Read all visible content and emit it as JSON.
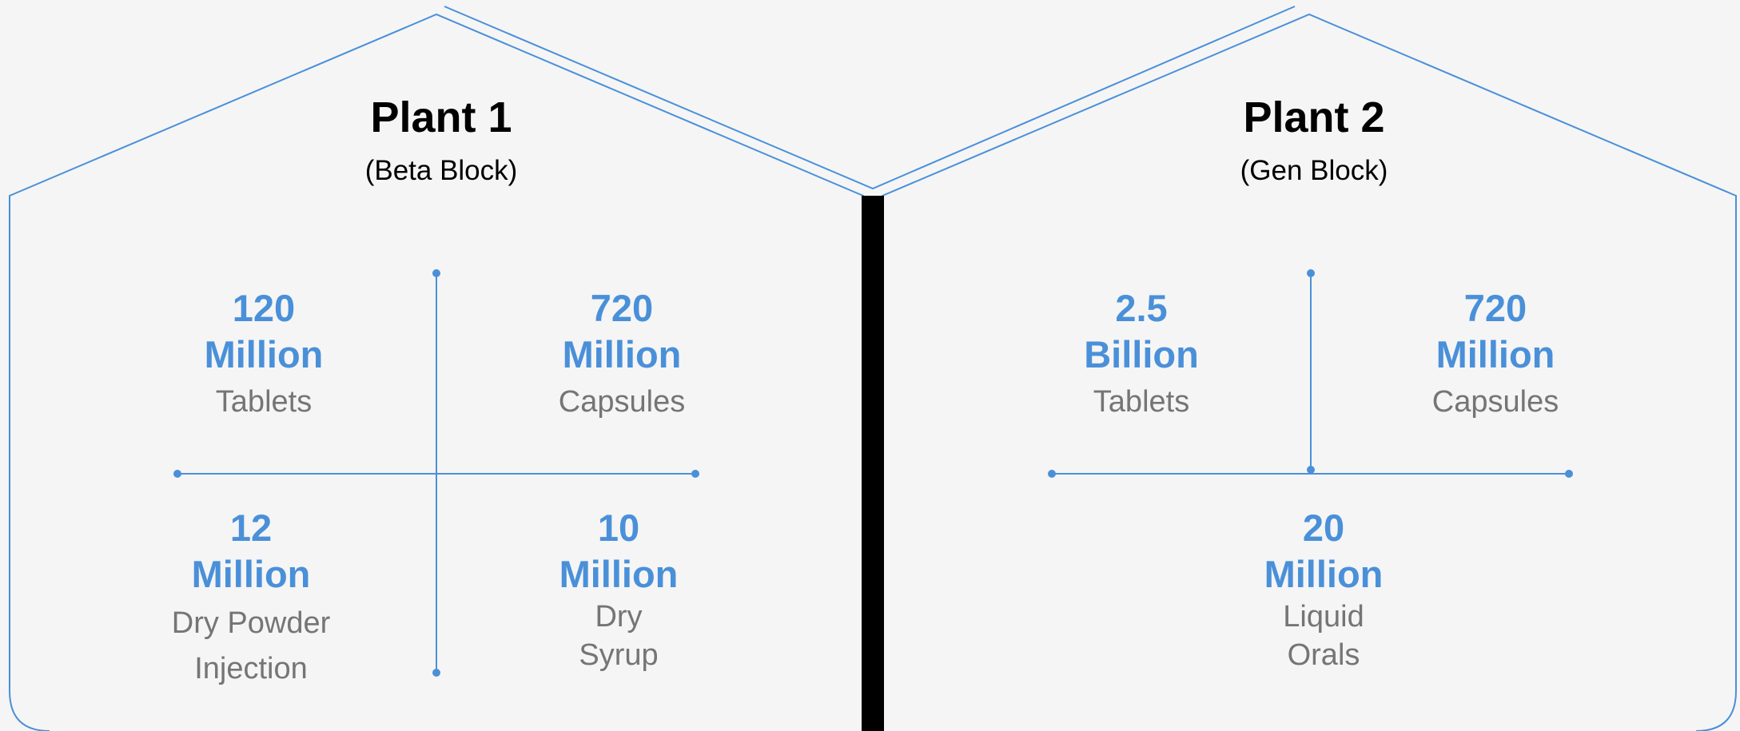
{
  "colors": {
    "accent": "#4a90d9",
    "label": "#757575",
    "title": "#000000",
    "divider": "#000000"
  },
  "plants": [
    {
      "title": "Plant 1",
      "subtitle": "(Beta Block)",
      "stats": [
        {
          "value": "120",
          "unit": "Million",
          "label": "Tablets"
        },
        {
          "value": "720",
          "unit": "Million",
          "label": "Capsules"
        },
        {
          "value": "12",
          "unit": "Million",
          "label_lines": [
            "Dry Powder",
            "Injection"
          ]
        },
        {
          "value": "10",
          "unit": "Million",
          "label_lines": [
            "Dry",
            "Syrup"
          ]
        }
      ]
    },
    {
      "title": "Plant 2",
      "subtitle": "(Gen Block)",
      "stats": [
        {
          "value": "2.5",
          "unit": "Billion",
          "label": "Tablets"
        },
        {
          "value": "720",
          "unit": "Million",
          "label": "Capsules"
        },
        {
          "value": "20",
          "unit": "Million",
          "label_lines": [
            "Liquid",
            "Orals"
          ]
        }
      ]
    }
  ]
}
